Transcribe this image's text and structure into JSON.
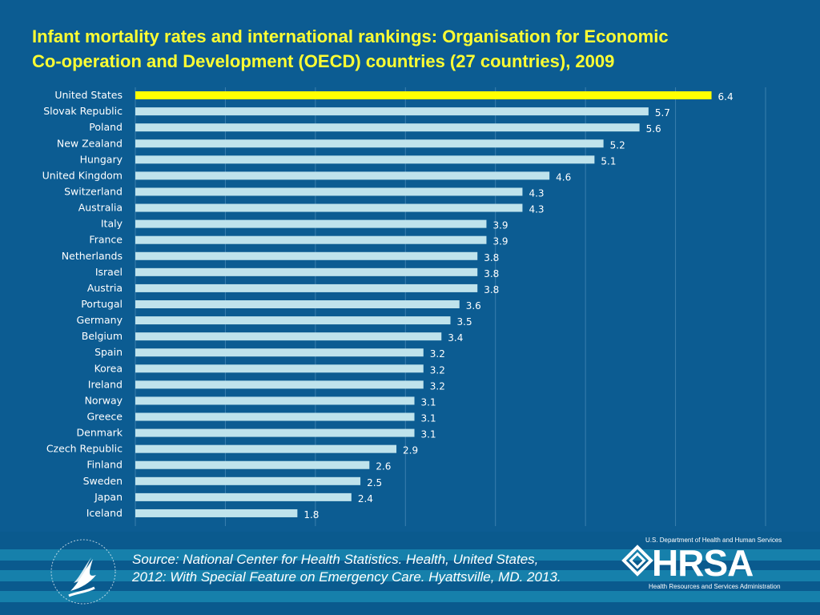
{
  "title_line1": "Infant mortality rates and international rankings: Organisation for Economic",
  "title_line2": "Co-operation and Development (OECD) countries (27 countries), 2009",
  "source_line1": "Source: National Center for Health Statistics. Health, United States,",
  "source_line2": "2012: With Special Feature on Emergency Care. Hyattsville, MD. 2013.",
  "logo": {
    "hrsa_name": "HRSA",
    "hrsa_department": "U.S. Department of Health and Human Services",
    "hrsa_full_name": "Health Resources and Services Administration",
    "hhs_logo_icon": "hhs-eagle-seal-icon"
  },
  "colors": {
    "background": "#0c5c92",
    "bar": "#bfe3ec",
    "highlight_bar": "#ffff00",
    "title": "#ffff33",
    "text": "#ffffff",
    "grid": "#3a7fae"
  },
  "chart_data": {
    "type": "bar",
    "orientation": "horizontal",
    "categories": [
      "United States",
      "Slovak Republic",
      "Poland",
      "New Zealand",
      "Hungary",
      "United Kingdom",
      "Switzerland",
      "Australia",
      "Italy",
      "France",
      "Netherlands",
      "Israel",
      "Austria",
      "Portugal",
      "Germany",
      "Belgium",
      "Spain",
      "Korea",
      "Ireland",
      "Norway",
      "Greece",
      "Denmark",
      "Czech Republic",
      "Finland",
      "Sweden",
      "Japan",
      "Iceland"
    ],
    "values": [
      6.4,
      5.7,
      5.6,
      5.2,
      5.1,
      4.6,
      4.3,
      4.3,
      3.9,
      3.9,
      3.8,
      3.8,
      3.8,
      3.6,
      3.5,
      3.4,
      3.2,
      3.2,
      3.2,
      3.1,
      3.1,
      3.1,
      2.9,
      2.6,
      2.5,
      2.4,
      1.8
    ],
    "value_labels": [
      "6.4",
      "5.7",
      "5.6",
      "5.2",
      "5.1",
      "4.6",
      "4.3",
      "4.3",
      "3.9",
      "3.9",
      "3.8",
      "3.8",
      "3.8",
      "3.6",
      "3.5",
      "3.4",
      "3.2",
      "3.2",
      "3.2",
      "3.1",
      "3.1",
      "3.1",
      "2.9",
      "2.6",
      "2.5",
      "2.4",
      "1.8"
    ],
    "highlight": "United States",
    "xlim": [
      0,
      7
    ],
    "xticks": [
      "0.0",
      "1.0",
      "2.0",
      "3.0",
      "4.0",
      "5.0",
      "6.0",
      "7.0"
    ],
    "grid": true
  }
}
